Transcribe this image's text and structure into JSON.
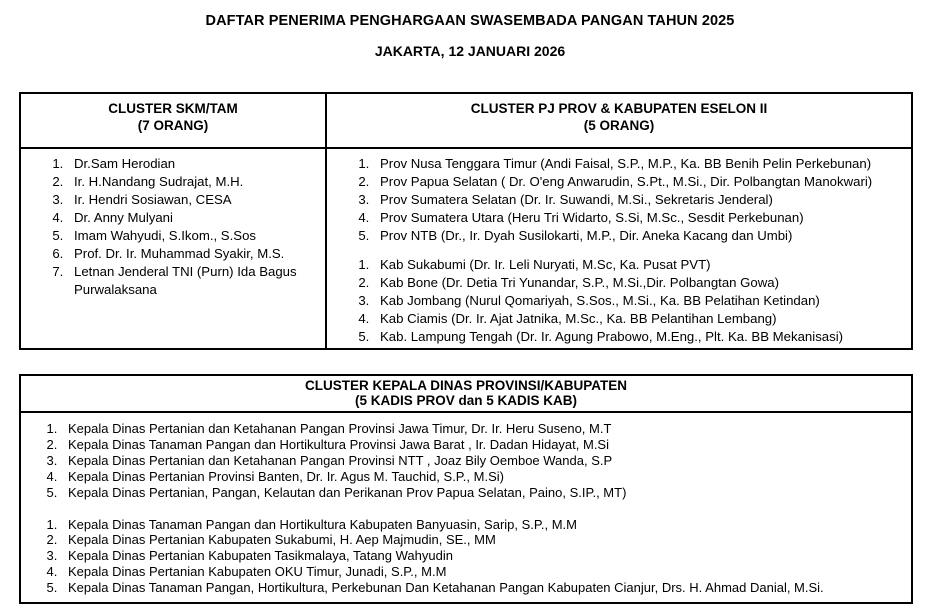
{
  "colors": {
    "text": "#000000",
    "border": "#000000",
    "background": "#ffffff"
  },
  "header": {
    "title": "DAFTAR PENERIMA PENGHARGAAN SWASEMBADA PANGAN TAHUN 2025",
    "subtitle": "JAKARTA, 12 JANUARI 2026"
  },
  "table1": {
    "col1": {
      "title": "CLUSTER SKM/TAM",
      "count": "(7 ORANG)",
      "items": [
        "Dr.Sam Herodian",
        "Ir. H.Nandang Sudrajat, M.H.",
        "Ir. Hendri Sosiawan, CESA",
        "Dr. Anny Mulyani",
        "Imam Wahyudi, S.Ikom., S.Sos",
        "Prof. Dr. Ir. Muhammad Syakir, M.S.",
        "Letnan Jenderal TNI (Purn) Ida Bagus Purwalaksana"
      ]
    },
    "col2": {
      "title": "CLUSTER PJ PROV & KABUPATEN ESELON II",
      "count": "(5 ORANG)",
      "prov_items": [
        "Prov Nusa Tenggara Timur (Andi Faisal, S.P., M.P., Ka. BB Benih Pelin Perkebunan)",
        "Prov Papua Selatan ( Dr. O'eng Anwarudin, S.Pt., M.Si., Dir. Polbangtan Manokwari)",
        "Prov Sumatera Selatan (Dr. Ir. Suwandi, M.Si., Sekretaris Jenderal)",
        "Prov Sumatera Utara (Heru Tri Widarto, S.Si, M.Sc., Sesdit Perkebunan)",
        "Prov NTB (Dr., Ir. Dyah Susilokarti, M.P., Dir. Aneka Kacang dan Umbi)"
      ],
      "kab_items": [
        "Kab Sukabumi (Dr. Ir. Leli Nuryati, M.Sc, Ka. Pusat PVT)",
        "Kab Bone (Dr. Detia Tri Yunandar, S.P., M.Si.,Dir. Polbangtan Gowa)",
        "Kab Jombang (Nurul Qomariyah, S.Sos., M.Si., Ka. BB Pelatihan Ketindan)",
        "Kab Ciamis (Dr. Ir. Ajat Jatnika, M.Sc., Ka. BB Pelantihan Lembang)",
        "Kab. Lampung Tengah (Dr. Ir. Agung Prabowo, M.Eng., Plt. Ka. BB Mekanisasi)"
      ]
    }
  },
  "table2": {
    "title": "CLUSTER KEPALA DINAS PROVINSI/KABUPATEN",
    "count": "(5 KADIS PROV dan 5 KADIS KAB)",
    "kadis_prov_items": [
      "Kepala Dinas Pertanian dan Ketahanan Pangan Provinsi Jawa Timur, Dr. Ir. Heru Suseno, M.T",
      "Kepala Dinas Tanaman Pangan dan Hortikultura Provinsi Jawa Barat , Ir. Dadan Hidayat, M.Si",
      "Kepala Dinas Pertanian dan Ketahanan Pangan Provinsi NTT , Joaz Bily Oemboe Wanda, S.P",
      "Kepala Dinas Pertanian Provinsi Banten, Dr. Ir. Agus M. Tauchid, S.P., M.Si)",
      "Kepala Dinas Pertanian, Pangan, Kelautan dan Perikanan Prov Papua Selatan, Paino, S.IP., MT)"
    ],
    "kadis_kab_items": [
      "Kepala Dinas Tanaman Pangan dan Hortikultura Kabupaten Banyuasin, Sarip, S.P., M.M",
      "Kepala Dinas Pertanian Kabupaten Sukabumi, H. Aep Majmudin, SE., MM",
      "Kepala Dinas Pertanian Kabupaten Tasikmalaya, Tatang Wahyudin",
      "Kepala Dinas Pertanian Kabupaten OKU Timur, Junadi, S.P., M.M",
      "Kepala Dinas Tanaman Pangan, Hortikultura, Perkebunan Dan Ketahanan Pangan Kabupaten Cianjur, Drs. H. Ahmad Danial, M.Si."
    ]
  }
}
